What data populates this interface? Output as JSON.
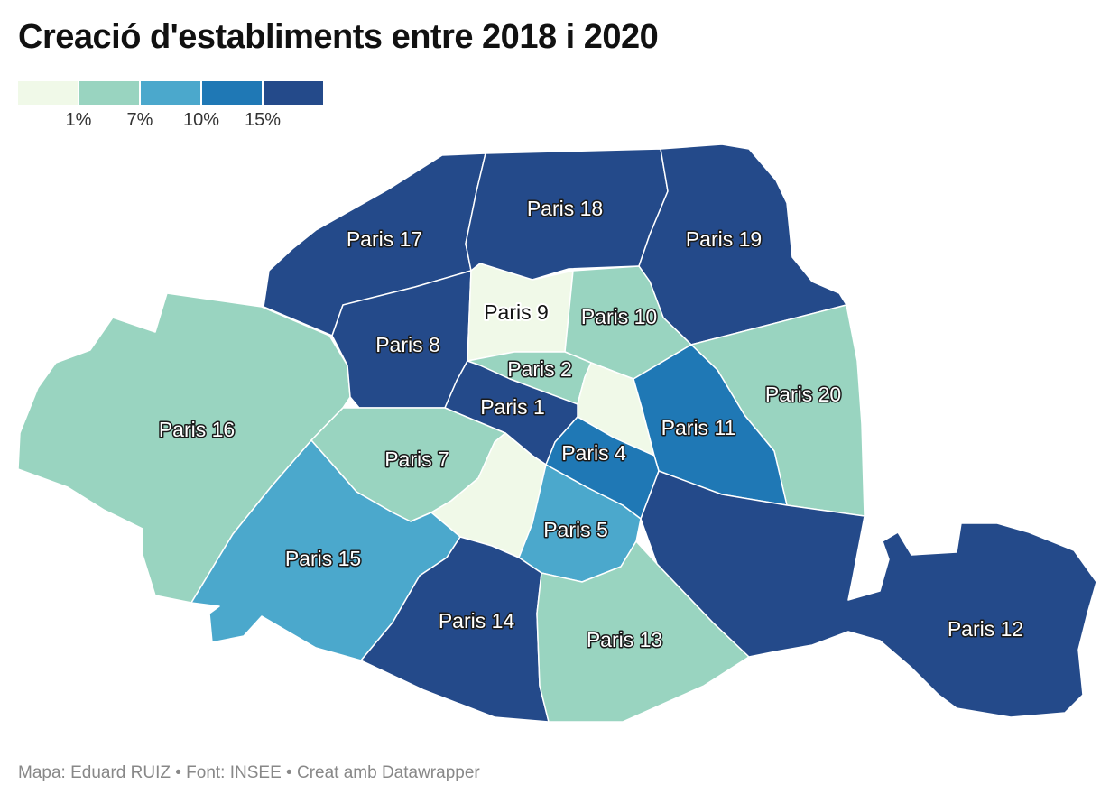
{
  "title": "Creació d'establiments entre 2018 i 2020",
  "footer": "Mapa: Eduard RUIZ • Font: INSEE • Creat amb Datawrapper",
  "legend": {
    "colors": [
      "#f0f9e8",
      "#99d4c0",
      "#4ba8cc",
      "#1f78b5",
      "#244a8a"
    ],
    "ticks": [
      "1%",
      "7%",
      "10%",
      "15%"
    ]
  },
  "districts": [
    {
      "id": "16",
      "label": "Paris 16",
      "bin": 1
    },
    {
      "id": "17",
      "label": "Paris 17",
      "bin": 4
    },
    {
      "id": "18",
      "label": "Paris 18",
      "bin": 4
    },
    {
      "id": "19",
      "label": "Paris 19",
      "bin": 4
    },
    {
      "id": "20",
      "label": "Paris 20",
      "bin": 1
    },
    {
      "id": "8",
      "label": "Paris 8",
      "bin": 4
    },
    {
      "id": "9",
      "label": "Paris 9",
      "bin": 0
    },
    {
      "id": "10",
      "label": "Paris 10",
      "bin": 1
    },
    {
      "id": "2",
      "label": "Paris 2",
      "bin": 1
    },
    {
      "id": "3",
      "label": "",
      "bin": 0
    },
    {
      "id": "1",
      "label": "Paris 1",
      "bin": 4
    },
    {
      "id": "11",
      "label": "Paris 11",
      "bin": 3
    },
    {
      "id": "7",
      "label": "Paris 7",
      "bin": 1
    },
    {
      "id": "4",
      "label": "Paris 4",
      "bin": 3
    },
    {
      "id": "6",
      "label": "",
      "bin": 0
    },
    {
      "id": "5",
      "label": "Paris 5",
      "bin": 2
    },
    {
      "id": "15",
      "label": "Paris 15",
      "bin": 2
    },
    {
      "id": "14",
      "label": "Paris 14",
      "bin": 4
    },
    {
      "id": "13",
      "label": "Paris 13",
      "bin": 1
    },
    {
      "id": "12",
      "label": "Paris 12",
      "bin": 4
    }
  ]
}
